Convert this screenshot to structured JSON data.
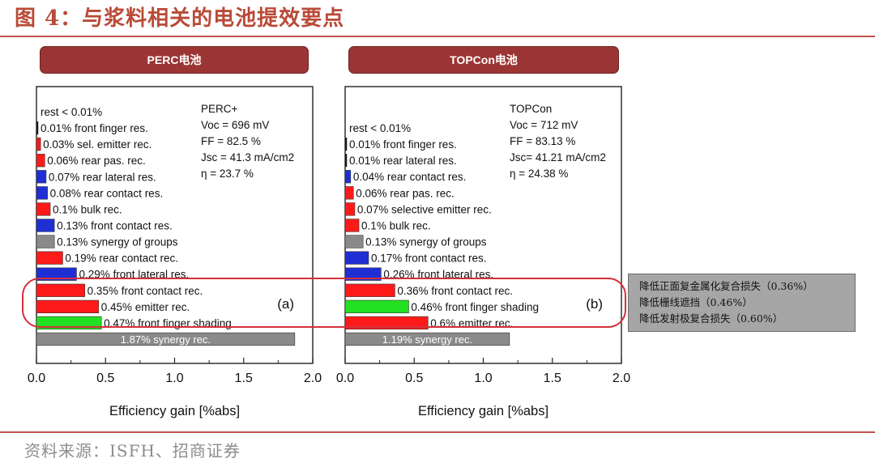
{
  "title": "图 4：与浆料相关的电池提效要点",
  "source": "资料来源：ISFH、招商证券",
  "notes": [
    "降低正面复金属化复合损失（0.36%）",
    "降低栅线遮挡（0.46%）",
    "降低发射极复合损失（0.60%）"
  ],
  "colors": {
    "red": "#ff1a1a",
    "blue": "#1f2fd4",
    "gray": "#8a8a8a",
    "green": "#22e022",
    "dark": "#101010",
    "title": "#b94a37",
    "header": "#9b3533"
  },
  "chart_data": [
    {
      "type": "bar",
      "orientation": "horizontal",
      "header": "PERC电池",
      "panel_label": "(a)",
      "xlabel": "Efficiency gain [%abs]",
      "xlim": [
        0,
        2.0
      ],
      "xticks": [
        "0.0",
        "0.5",
        "1.0",
        "1.5",
        "2.0"
      ],
      "params": [
        "PERC+",
        "Voc = 696 mV",
        "FF = 82.5 %",
        "Jsc = 41.3 mA/cm2",
        "η = 23.7 %"
      ],
      "bars": [
        {
          "label": "rest < 0.01%",
          "value": 0.0,
          "color": "none"
        },
        {
          "label": "0.01% front finger res.",
          "value": 0.01,
          "color": "dark"
        },
        {
          "label": "0.03% sel. emitter rec.",
          "value": 0.03,
          "color": "red"
        },
        {
          "label": "0.06% rear pas. rec.",
          "value": 0.06,
          "color": "red"
        },
        {
          "label": "0.07% rear lateral res.",
          "value": 0.07,
          "color": "blue"
        },
        {
          "label": "0.08% rear contact res.",
          "value": 0.08,
          "color": "blue"
        },
        {
          "label": "0.1% bulk rec.",
          "value": 0.1,
          "color": "red"
        },
        {
          "label": "0.13% front contact res.",
          "value": 0.13,
          "color": "blue"
        },
        {
          "label": "0.13% synergy of groups",
          "value": 0.13,
          "color": "gray"
        },
        {
          "label": "0.19% rear contact rec.",
          "value": 0.19,
          "color": "red"
        },
        {
          "label": "0.29% front lateral res.",
          "value": 0.29,
          "color": "blue"
        },
        {
          "label": "0.35% front contact rec.",
          "value": 0.35,
          "color": "red"
        },
        {
          "label": "0.45% emitter rec.",
          "value": 0.45,
          "color": "red"
        },
        {
          "label": "0.47% front finger shading",
          "value": 0.47,
          "color": "green"
        },
        {
          "label": "1.87% synergy rec.",
          "value": 1.87,
          "color": "gray",
          "label_inside": true
        }
      ]
    },
    {
      "type": "bar",
      "orientation": "horizontal",
      "header": "TOPCon电池",
      "panel_label": "(b)",
      "xlabel": "Efficiency gain [%abs]",
      "xlim": [
        0,
        2.0
      ],
      "xticks": [
        "0.0",
        "0.5",
        "1.0",
        "1.5",
        "2.0"
      ],
      "params": [
        "TOPCon",
        "Voc = 712 mV",
        "FF = 83.13 %",
        "Jsc= 41.21 mA/cm2",
        "η = 24.38 %"
      ],
      "bars": [
        {
          "label": "rest < 0.01%",
          "value": 0.0,
          "color": "none"
        },
        {
          "label": "0.01% front finger res.",
          "value": 0.01,
          "color": "dark"
        },
        {
          "label": "0.01% rear lateral res.",
          "value": 0.01,
          "color": "dark"
        },
        {
          "label": "0.04% rear contact res.",
          "value": 0.04,
          "color": "blue"
        },
        {
          "label": "0.06% rear pas. rec.",
          "value": 0.06,
          "color": "red"
        },
        {
          "label": "0.07% selective emitter rec.",
          "value": 0.07,
          "color": "red"
        },
        {
          "label": "0.1% bulk rec.",
          "value": 0.1,
          "color": "red"
        },
        {
          "label": "0.13% synergy of groups",
          "value": 0.13,
          "color": "gray"
        },
        {
          "label": "0.17% front contact res.",
          "value": 0.17,
          "color": "blue"
        },
        {
          "label": "0.26% front lateral res.",
          "value": 0.26,
          "color": "blue"
        },
        {
          "label": "0.36% front contact rec.",
          "value": 0.36,
          "color": "red"
        },
        {
          "label": "0.46% front finger shading",
          "value": 0.46,
          "color": "green"
        },
        {
          "label": "0.6% emitter rec.",
          "value": 0.6,
          "color": "red"
        },
        {
          "label": "1.19% synergy rec.",
          "value": 1.19,
          "color": "gray",
          "label_inside": true
        }
      ]
    }
  ]
}
